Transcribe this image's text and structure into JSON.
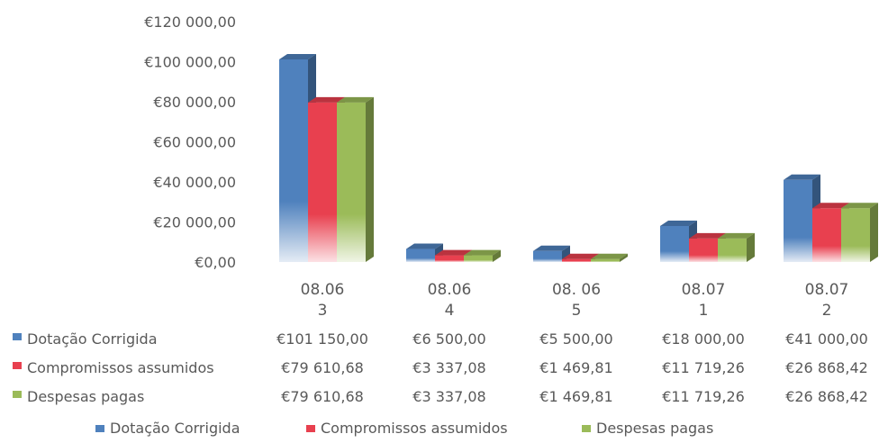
{
  "chart_data": {
    "type": "bar",
    "title": "",
    "xlabel": "",
    "ylabel": "",
    "ylim": [
      0,
      120000
    ],
    "y_ticks": [
      "€0,00",
      "€20 000,00",
      "€40 000,00",
      "€60 000,00",
      "€80 000,00",
      "€100 000,00",
      "€120 000,00"
    ],
    "categories": [
      [
        "08.06",
        "3"
      ],
      [
        "08.06",
        "4"
      ],
      [
        "08. 06",
        "5"
      ],
      [
        "08.07",
        "1"
      ],
      [
        "08.07",
        "2"
      ]
    ],
    "series": [
      {
        "name": "Dotação Corrigida",
        "color": "#4f81bd",
        "values": [
          101150.0,
          6500.0,
          5500.0,
          18000.0,
          41000.0
        ],
        "labels": [
          "€101 150,00",
          "€6 500,00",
          "€5 500,00",
          "€18 000,00",
          "€41 000,00"
        ]
      },
      {
        "name": "Compromissos assumidos",
        "color": "#e8404f",
        "values": [
          79610.68,
          3337.08,
          1469.81,
          11719.26,
          26868.42
        ],
        "labels": [
          "€79 610,68",
          "€3 337,08",
          "€1 469,81",
          "€11 719,26",
          "€26 868,42"
        ]
      },
      {
        "name": "Despesas pagas",
        "color": "#9bbb59",
        "values": [
          79610.68,
          3337.08,
          1469.81,
          11719.26,
          26868.42
        ],
        "labels": [
          "€79 610,68",
          "€3 337,08",
          "€1 469,81",
          "€11 719,26",
          "€26 868,42"
        ]
      }
    ],
    "grid": false,
    "legend": "bottom",
    "data_table": true,
    "style": "3d-clustered-column"
  }
}
